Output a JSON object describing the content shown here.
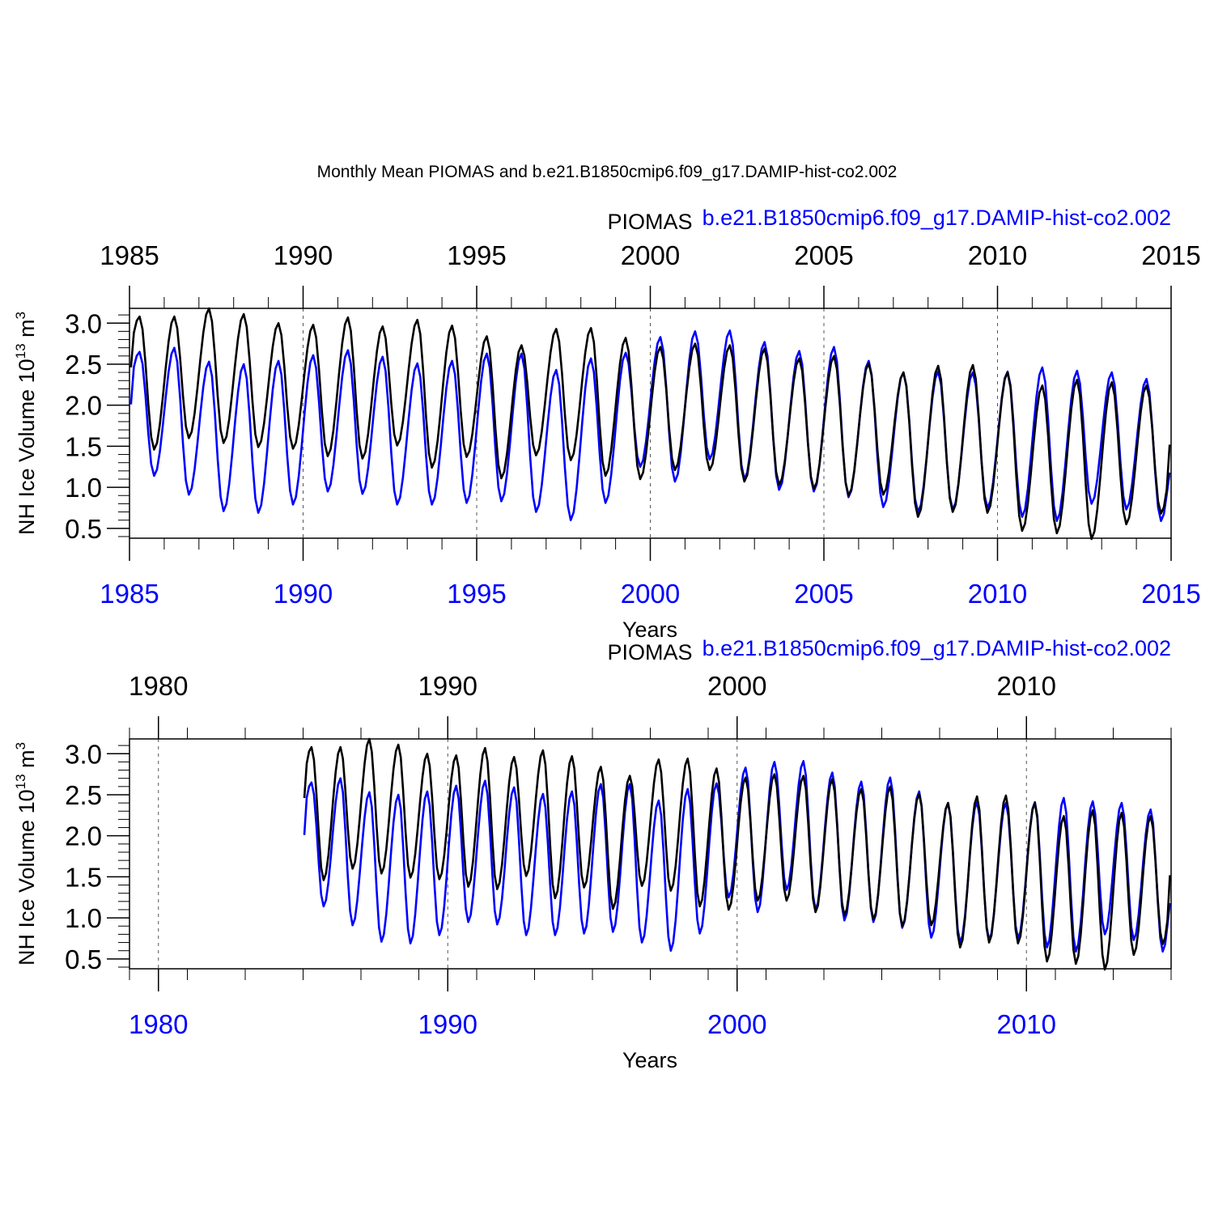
{
  "title": "Monthly Mean PIOMAS and b.e21.B1850cmip6.f09_g17.DAMIP-hist-co2.002",
  "colors": {
    "piomas": "#000000",
    "model": "#0000ff",
    "frame": "#000000",
    "grid": "#000000"
  },
  "chart_data": [
    {
      "type": "line",
      "xlabel": "Years",
      "ylabel": "NH Ice Volume 10",
      "ylabel_exp": "13",
      "ylabel_unit": " m",
      "ylabel_unit_exp": "3",
      "legend": [
        "PIOMAS",
        "b.e21.B1850cmip6.f09_g17.DAMIP-hist-co2.002"
      ],
      "xlim": [
        1985,
        2015
      ],
      "ylim": [
        0.38,
        3.18
      ],
      "xticks": [
        1985,
        1990,
        1995,
        2000,
        2005,
        2010,
        2015
      ],
      "xtick_labels": [
        "1985",
        "1990",
        "1995",
        "2000",
        "2005",
        "2010",
        "2015"
      ],
      "yticks": [
        0.5,
        1.0,
        1.5,
        2.0,
        2.5,
        3.0
      ],
      "ytick_labels": [
        "0.5",
        "1.0",
        "1.5",
        "2.0",
        "2.5",
        "3.0"
      ],
      "series": [
        {
          "name": "PIOMAS",
          "color": "#000000",
          "start_year": 1985,
          "annual_max": [
            3.08,
            3.08,
            3.18,
            3.11,
            3.0,
            2.98,
            3.07,
            2.96,
            3.04,
            2.97,
            2.84,
            2.73,
            2.93,
            2.94,
            2.82,
            2.71,
            2.75,
            2.73,
            2.69,
            2.57,
            2.6,
            2.51,
            2.4,
            2.48,
            2.49,
            2.4,
            2.24,
            2.31,
            2.28,
            2.24
          ],
          "annual_min": [
            1.46,
            1.6,
            1.54,
            1.49,
            1.47,
            1.38,
            1.35,
            1.51,
            1.24,
            1.37,
            1.11,
            1.39,
            1.33,
            1.14,
            1.1,
            1.21,
            1.21,
            1.07,
            1.03,
            0.98,
            0.9,
            0.91,
            0.64,
            0.7,
            0.69,
            0.47,
            0.44,
            0.37,
            0.55,
            0.68
          ],
          "end_value": 1.52
        },
        {
          "name": "b.e21.B1850cmip6.f09_g17.DAMIP-hist-co2.002",
          "color": "#0000ff",
          "start_year": 1985,
          "annual_max": [
            2.65,
            2.7,
            2.53,
            2.5,
            2.54,
            2.61,
            2.67,
            2.59,
            2.51,
            2.54,
            2.63,
            2.63,
            2.43,
            2.57,
            2.64,
            2.83,
            2.9,
            2.91,
            2.77,
            2.66,
            2.71,
            2.54,
            2.4,
            2.41,
            2.4,
            2.41,
            2.46,
            2.42,
            2.4,
            2.32
          ],
          "annual_min": [
            1.14,
            0.91,
            0.71,
            0.69,
            0.79,
            0.95,
            0.92,
            0.79,
            0.79,
            0.81,
            0.83,
            0.7,
            0.6,
            0.81,
            1.25,
            1.07,
            1.34,
            1.1,
            0.97,
            0.95,
            0.88,
            0.76,
            0.7,
            0.73,
            0.75,
            0.64,
            0.59,
            0.8,
            0.73,
            0.59
          ],
          "end_value": 1.18
        }
      ]
    },
    {
      "type": "line",
      "xlabel": "Years",
      "ylabel": "NH Ice Volume 10",
      "ylabel_exp": "13",
      "ylabel_unit": " m",
      "ylabel_unit_exp": "3",
      "legend": [
        "PIOMAS",
        "b.e21.B1850cmip6.f09_g17.DAMIP-hist-co2.002"
      ],
      "xlim": [
        1979,
        2015
      ],
      "ylim": [
        0.38,
        3.18
      ],
      "xticks": [
        1980,
        1990,
        2000,
        2010
      ],
      "xtick_labels": [
        "1980",
        "1990",
        "2000",
        "2010"
      ],
      "yticks": [
        0.5,
        1.0,
        1.5,
        2.0,
        2.5,
        3.0
      ],
      "ytick_labels": [
        "0.5",
        "1.0",
        "1.5",
        "2.0",
        "2.5",
        "3.0"
      ],
      "series_ref": "same data as first panel"
    }
  ]
}
